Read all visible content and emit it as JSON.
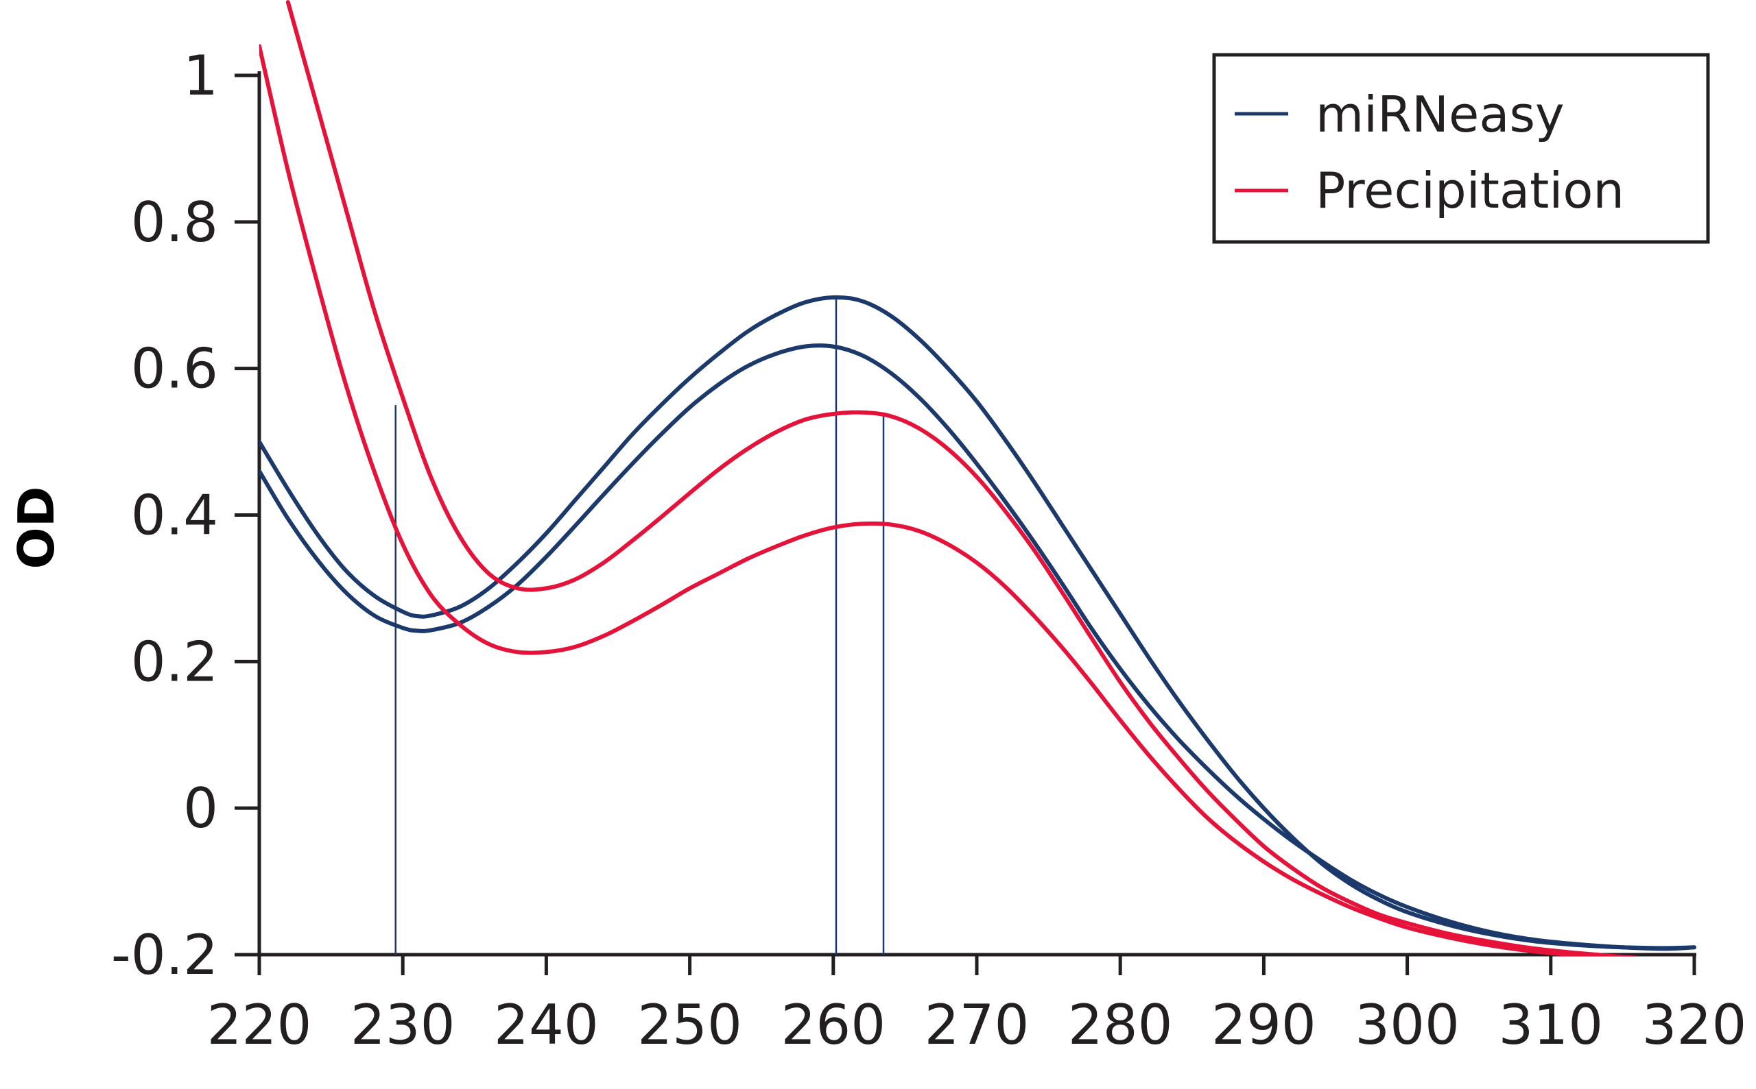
{
  "chart_data": {
    "type": "line",
    "ylabel": "OD",
    "xlim": [
      220,
      320
    ],
    "ylim": [
      -0.2,
      1.0
    ],
    "x_ticks": [
      "220",
      "230",
      "240",
      "250",
      "260",
      "270",
      "280",
      "290",
      "300",
      "310",
      "320"
    ],
    "y_ticks": [
      "-0.2",
      "0",
      "0.2",
      "0.4",
      "0.6",
      "0.8",
      "1"
    ],
    "grid": false,
    "legend_position": "top-right",
    "legend": [
      {
        "label": "miRNeasy",
        "color": "#1b3a6b"
      },
      {
        "label": "Precipitation",
        "color": "#e5133a"
      }
    ],
    "series": [
      {
        "color": "#1b3a6b",
        "x": [
          220,
          222,
          224,
          226,
          228,
          230,
          231,
          232,
          234,
          236,
          238,
          240,
          242,
          244,
          246,
          248,
          250,
          252,
          254,
          256,
          258,
          260,
          262,
          264,
          266,
          268,
          270,
          272,
          274,
          276,
          278,
          280,
          282,
          284,
          286,
          288,
          290,
          292,
          294,
          296,
          298,
          300,
          303,
          306,
          309,
          312,
          315,
          318,
          320
        ],
        "y": [
          0.5,
          0.435,
          0.375,
          0.325,
          0.29,
          0.268,
          0.262,
          0.263,
          0.275,
          0.3,
          0.335,
          0.375,
          0.42,
          0.465,
          0.51,
          0.55,
          0.587,
          0.62,
          0.65,
          0.673,
          0.69,
          0.697,
          0.692,
          0.672,
          0.64,
          0.6,
          0.555,
          0.502,
          0.445,
          0.385,
          0.325,
          0.265,
          0.205,
          0.148,
          0.095,
          0.045,
          0.0,
          -0.04,
          -0.075,
          -0.103,
          -0.125,
          -0.142,
          -0.16,
          -0.173,
          -0.182,
          -0.187,
          -0.19,
          -0.191,
          -0.19
        ]
      },
      {
        "color": "#1b3a6b",
        "x": [
          220,
          222,
          224,
          226,
          228,
          230,
          231,
          232,
          234,
          236,
          238,
          240,
          242,
          244,
          246,
          248,
          250,
          252,
          254,
          256,
          258,
          260,
          262,
          264,
          266,
          268,
          270,
          272,
          274,
          276,
          278,
          280,
          282,
          284,
          286,
          288,
          290,
          292,
          294,
          296,
          298,
          300,
          303,
          306,
          309,
          312,
          315,
          318,
          320
        ],
        "y": [
          0.46,
          0.395,
          0.34,
          0.295,
          0.263,
          0.246,
          0.242,
          0.243,
          0.253,
          0.275,
          0.305,
          0.343,
          0.385,
          0.428,
          0.47,
          0.51,
          0.547,
          0.578,
          0.603,
          0.62,
          0.63,
          0.63,
          0.618,
          0.594,
          0.56,
          0.518,
          0.47,
          0.418,
          0.363,
          0.305,
          0.245,
          0.19,
          0.14,
          0.095,
          0.055,
          0.018,
          -0.015,
          -0.045,
          -0.072,
          -0.097,
          -0.118,
          -0.135,
          -0.155,
          -0.17,
          -0.18,
          -0.186,
          -0.19,
          -0.192,
          -0.19
        ]
      },
      {
        "color": "#e5133a",
        "x": [
          222,
          224,
          226,
          228,
          230,
          232,
          234,
          236,
          238,
          240,
          242,
          244,
          246,
          248,
          250,
          252,
          254,
          256,
          258,
          260,
          262,
          264,
          266,
          268,
          270,
          272,
          274,
          276,
          278,
          280,
          282,
          284,
          286,
          288,
          290,
          292,
          294,
          296,
          298,
          300,
          303,
          306,
          309,
          312,
          315,
          318,
          320
        ],
        "y": [
          1.1,
          0.96,
          0.82,
          0.68,
          0.56,
          0.45,
          0.37,
          0.32,
          0.3,
          0.3,
          0.312,
          0.335,
          0.365,
          0.397,
          0.43,
          0.462,
          0.49,
          0.513,
          0.53,
          0.538,
          0.54,
          0.535,
          0.518,
          0.49,
          0.452,
          0.405,
          0.352,
          0.293,
          0.232,
          0.172,
          0.118,
          0.07,
          0.025,
          -0.015,
          -0.052,
          -0.082,
          -0.108,
          -0.128,
          -0.145,
          -0.157,
          -0.172,
          -0.183,
          -0.192,
          -0.198,
          -0.203,
          -0.207,
          -0.21
        ]
      },
      {
        "color": "#e5133a",
        "x": [
          220,
          222,
          224,
          226,
          228,
          230,
          232,
          234,
          236,
          238,
          240,
          242,
          244,
          246,
          248,
          250,
          252,
          254,
          256,
          258,
          260,
          262,
          264,
          266,
          268,
          270,
          272,
          274,
          276,
          278,
          280,
          282,
          284,
          286,
          288,
          290,
          292,
          294,
          296,
          298,
          300,
          303,
          306,
          309,
          312,
          315,
          318,
          320
        ],
        "y": [
          1.04,
          0.87,
          0.72,
          0.58,
          0.46,
          0.36,
          0.29,
          0.25,
          0.224,
          0.213,
          0.213,
          0.22,
          0.235,
          0.255,
          0.277,
          0.3,
          0.32,
          0.34,
          0.357,
          0.372,
          0.383,
          0.388,
          0.387,
          0.378,
          0.36,
          0.335,
          0.302,
          0.262,
          0.218,
          0.17,
          0.12,
          0.072,
          0.028,
          -0.012,
          -0.045,
          -0.073,
          -0.097,
          -0.117,
          -0.135,
          -0.15,
          -0.163,
          -0.177,
          -0.188,
          -0.196,
          -0.201,
          -0.205,
          -0.207,
          -0.208
        ]
      }
    ],
    "vertical_markers": [
      {
        "x": 229.5,
        "y_top": 0.55
      },
      {
        "x": 260.2,
        "y_top": 0.695
      },
      {
        "x": 263.5,
        "y_top": 0.535
      }
    ]
  }
}
